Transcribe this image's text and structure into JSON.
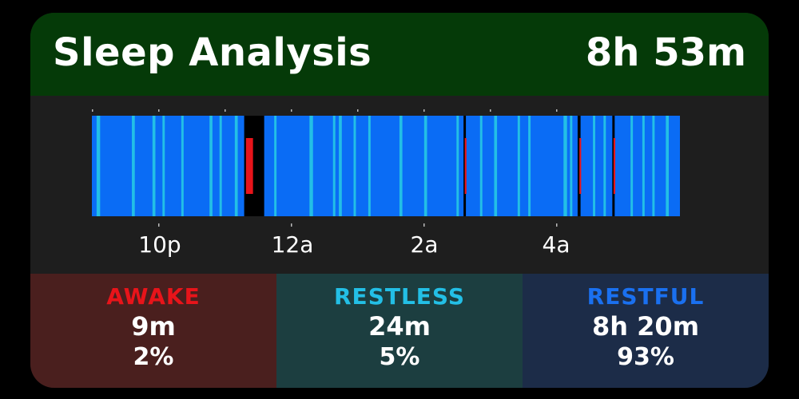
{
  "header": {
    "title": "Sleep Analysis",
    "total_duration": "8h 53m"
  },
  "timeline": {
    "ticks": [
      "10p",
      "12a",
      "2a",
      "4a"
    ],
    "legend_colors": {
      "restful": "#0a6cf5",
      "restless": "#23bfe6",
      "awake": "#e8141a"
    },
    "bands": [
      {
        "state": "restful",
        "from": 0.0,
        "to": 1.0
      },
      {
        "state": "gap",
        "from": 0.259,
        "to": 0.293
      },
      {
        "state": "awake",
        "from": 0.262,
        "to": 0.274
      },
      {
        "state": "gap",
        "from": 0.632,
        "to": 0.636
      },
      {
        "state": "gap",
        "from": 0.826,
        "to": 0.831
      },
      {
        "state": "gap",
        "from": 0.885,
        "to": 0.889
      },
      {
        "state": "restless",
        "from": 0.008,
        "to": 0.014
      },
      {
        "state": "restless",
        "from": 0.068,
        "to": 0.073
      },
      {
        "state": "restless",
        "from": 0.103,
        "to": 0.108
      },
      {
        "state": "restless",
        "from": 0.12,
        "to": 0.124
      },
      {
        "state": "restless",
        "from": 0.152,
        "to": 0.156
      },
      {
        "state": "restless",
        "from": 0.2,
        "to": 0.205
      },
      {
        "state": "restless",
        "from": 0.217,
        "to": 0.221
      },
      {
        "state": "restless",
        "from": 0.243,
        "to": 0.248
      },
      {
        "state": "restless",
        "from": 0.31,
        "to": 0.314
      },
      {
        "state": "restless",
        "from": 0.37,
        "to": 0.376
      },
      {
        "state": "restless",
        "from": 0.41,
        "to": 0.414
      },
      {
        "state": "restless",
        "from": 0.42,
        "to": 0.425
      },
      {
        "state": "restless",
        "from": 0.445,
        "to": 0.449
      },
      {
        "state": "restless",
        "from": 0.47,
        "to": 0.474
      },
      {
        "state": "restless",
        "from": 0.523,
        "to": 0.528
      },
      {
        "state": "restless",
        "from": 0.565,
        "to": 0.57
      },
      {
        "state": "restless",
        "from": 0.62,
        "to": 0.624
      },
      {
        "state": "restless",
        "from": 0.66,
        "to": 0.664
      },
      {
        "state": "restless",
        "from": 0.684,
        "to": 0.689
      },
      {
        "state": "restless",
        "from": 0.724,
        "to": 0.728
      },
      {
        "state": "restless",
        "from": 0.742,
        "to": 0.746
      },
      {
        "state": "restless",
        "from": 0.802,
        "to": 0.808
      },
      {
        "state": "restless",
        "from": 0.813,
        "to": 0.817
      },
      {
        "state": "restless",
        "from": 0.852,
        "to": 0.856
      },
      {
        "state": "restless",
        "from": 0.87,
        "to": 0.874
      },
      {
        "state": "restless",
        "from": 0.916,
        "to": 0.92
      },
      {
        "state": "restless",
        "from": 0.936,
        "to": 0.94
      },
      {
        "state": "restless",
        "from": 0.953,
        "to": 0.957
      },
      {
        "state": "restless",
        "from": 0.976,
        "to": 0.981
      },
      {
        "state": "awake",
        "from": 0.634,
        "to": 0.637
      },
      {
        "state": "awake",
        "from": 0.829,
        "to": 0.832
      },
      {
        "state": "awake",
        "from": 0.887,
        "to": 0.89
      }
    ]
  },
  "stats": [
    {
      "name": "AWAKE",
      "duration": "9m",
      "percent": "2%",
      "label_color": "#e8141a",
      "bg_color": "#4a1f1e"
    },
    {
      "name": "RESTLESS",
      "duration": "24m",
      "percent": "5%",
      "label_color": "#23bfe6",
      "bg_color": "#1c3e40"
    },
    {
      "name": "RESTFUL",
      "duration": "8h 20m",
      "percent": "93%",
      "label_color": "#1a70f0",
      "bg_color": "#1c2c48"
    }
  ]
}
